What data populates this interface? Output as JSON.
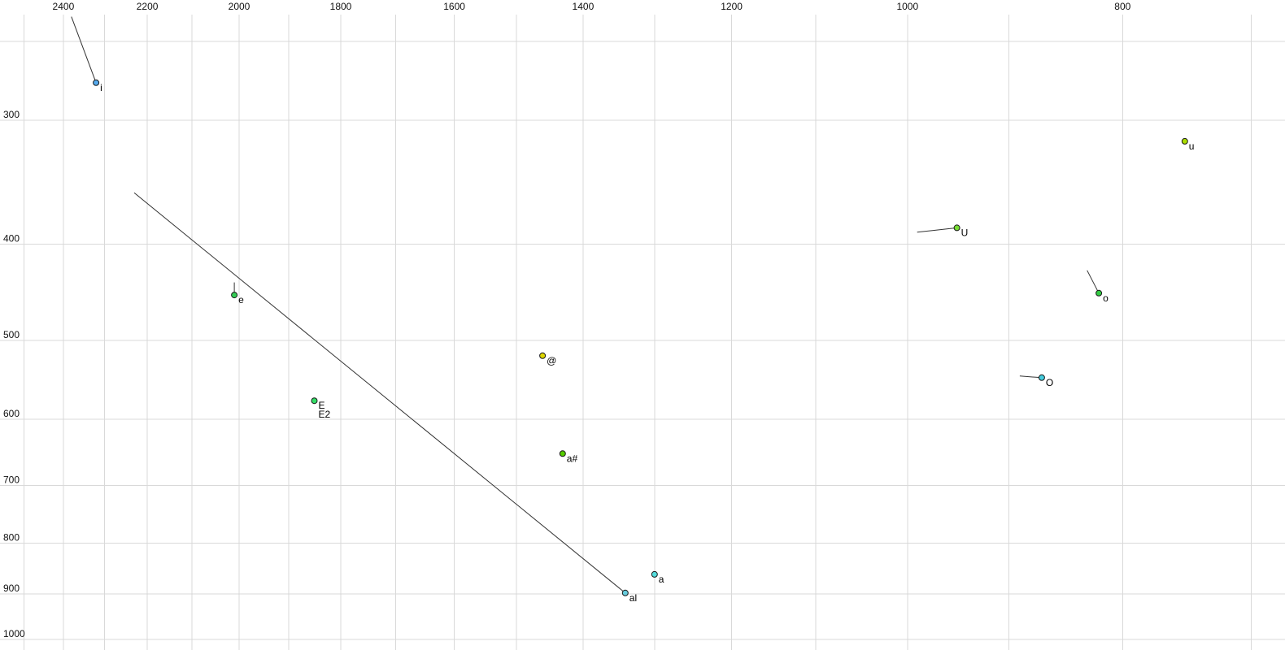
{
  "chart_data": {
    "type": "scatter",
    "title": "",
    "xlabel": "",
    "ylabel": "",
    "x_axis": {
      "scale": "log",
      "direction": "values-decrease-to-right",
      "left_value": 2563,
      "right_value": 676,
      "tick_labels": [
        2400,
        2200,
        2000,
        1800,
        1600,
        1400,
        1200,
        1000,
        800
      ],
      "gridlines": [
        2500,
        2400,
        2300,
        2200,
        2100,
        2000,
        1900,
        1800,
        1700,
        1600,
        1500,
        1400,
        1300,
        1200,
        1100,
        1000,
        900,
        800,
        700
      ]
    },
    "y_axis": {
      "scale": "log",
      "direction": "values-increase-downward",
      "top_value": 227,
      "bottom_value": 1025,
      "tick_labels": [
        300,
        400,
        500,
        600,
        700,
        800,
        900,
        1000
      ],
      "gridlines": [
        250,
        300,
        400,
        500,
        600,
        700,
        800,
        900,
        1000
      ]
    },
    "grid_color": "#d9d9d9",
    "trajectory_color": "#333333",
    "points": [
      {
        "label": "i",
        "f2": 2320,
        "f1": 275,
        "color": "#55aaee",
        "tail": {
          "f2": 2380,
          "f1": 236
        }
      },
      {
        "label": "u",
        "f2": 750,
        "f1": 315,
        "color": "#aadd00"
      },
      {
        "label": "U",
        "f2": 950,
        "f1": 385,
        "color": "#77dd33",
        "tail": {
          "f2": 990,
          "f1": 389
        }
      },
      {
        "label": "o",
        "f2": 820,
        "f1": 448,
        "color": "#33cc44",
        "tail": {
          "f2": 830,
          "f1": 425
        }
      },
      {
        "label": "e",
        "f2": 2010,
        "f1": 450,
        "color": "#33cc55",
        "tail": {
          "f2": 2010,
          "f1": 437
        }
      },
      {
        "label": "@",
        "f2": 1460,
        "f1": 518,
        "color": "#ddd500"
      },
      {
        "label": "O",
        "f2": 870,
        "f1": 545,
        "color": "#44ccdd",
        "tail": {
          "f2": 890,
          "f1": 543
        }
      },
      {
        "label": "E",
        "label2": "E2",
        "f2": 1850,
        "f1": 575,
        "color": "#33dd66"
      },
      {
        "label": "a#",
        "f2": 1430,
        "f1": 650,
        "color": "#55cc00"
      },
      {
        "label": "a",
        "f2": 1300,
        "f1": 860,
        "color": "#55dddd"
      },
      {
        "label": "al",
        "f2": 1340,
        "f1": 898,
        "color": "#66ccdd",
        "tail": {
          "f2": 2230,
          "f1": 355
        }
      }
    ]
  }
}
